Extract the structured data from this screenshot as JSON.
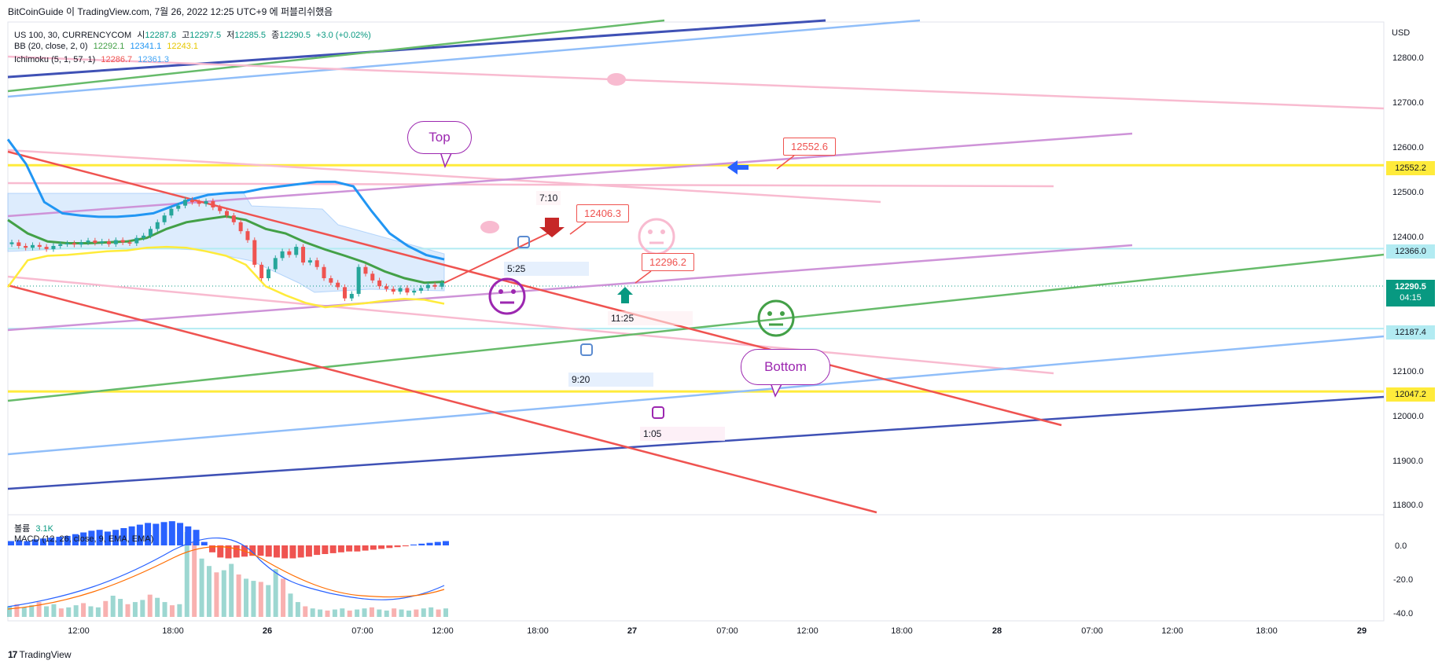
{
  "header": {
    "caption": "BitCoinGuide 이 TradingView.com, 7월 26, 2022 12:25 UTC+9 에 퍼블리쉬했음"
  },
  "legend": {
    "symbol": "US 100, 30, CURRENCYCOM",
    "open_label": "시",
    "open": "12287.8",
    "high_label": "고",
    "high": "12297.5",
    "low_label": "저",
    "low": "12285.5",
    "close_label": "종",
    "close": "12290.5",
    "change": "+3.0 (+0.02%)",
    "bb_label": "BB (20, close, 2, 0)",
    "bb_basis": "12292.1",
    "bb_upper": "12341.1",
    "bb_lower": "12243.1",
    "ichimoku_label": "Ichimoku (5, 1, 57, 1)",
    "ichimoku_a": "12286.7",
    "ichimoku_b": "12361.3",
    "volume_label": "볼륨",
    "volume_value": "3.1K",
    "macd_label": "MACD (12, 26, close, 9, EMA, EMA)"
  },
  "price_axis": {
    "currency": "USD",
    "ticks": [
      "12800.0",
      "12700.0",
      "12600.0",
      "12500.0",
      "12400.0",
      "12100.0",
      "12000.0",
      "11900.0",
      "11800.0"
    ],
    "tags": [
      {
        "value": "12552.2",
        "color": "#ffeb3b",
        "text_color": "#131722"
      },
      {
        "value": "12366.0",
        "color": "#b2ebf2",
        "text_color": "#131722"
      },
      {
        "value": "12290.5",
        "sub": "04:15",
        "color": "#089981",
        "text_color": "#ffffff"
      },
      {
        "value": "12187.4",
        "color": "#b2ebf2",
        "text_color": "#131722"
      },
      {
        "value": "12047.2",
        "color": "#ffeb3b",
        "text_color": "#131722"
      }
    ]
  },
  "macd_axis": {
    "ticks": [
      "0.0",
      "-20.0",
      "-40.0"
    ]
  },
  "time_axis": {
    "labels": [
      "12:00",
      "18:00",
      "26",
      "07:00",
      "12:00",
      "18:00",
      "27",
      "07:00",
      "12:00",
      "18:00",
      "28",
      "07:00",
      "12:00",
      "18:00",
      "29"
    ]
  },
  "annotations": {
    "callout_high": "12552.6",
    "callout_mid": "12406.3",
    "callout_low": "12296.2",
    "bubble_top": "Top",
    "bubble_bottom": "Bottom",
    "time_notes": [
      "7:10",
      "5:25",
      "11:25",
      "9:20",
      "1:05"
    ]
  },
  "footer": {
    "brand": "TradingView"
  },
  "chart_data": {
    "type": "candlestick",
    "ylim": [
      11770,
      12830
    ],
    "horizontal_levels": [
      12552.2,
      12366.0,
      12187.4,
      12047.2
    ],
    "closes": [
      12380,
      12372,
      12368,
      12374,
      12370,
      12365,
      12372,
      12376,
      12378,
      12375,
      12380,
      12384,
      12379,
      12382,
      12376,
      12385,
      12380,
      12378,
      12390,
      12395,
      12410,
      12425,
      12440,
      12455,
      12462,
      12475,
      12470,
      12466,
      12472,
      12458,
      12450,
      12440,
      12425,
      12405,
      12385,
      12330,
      12300,
      12320,
      12345,
      12360,
      12352,
      12370,
      12335,
      12340,
      12325,
      12300,
      12290,
      12280,
      12255,
      12265,
      12325,
      12310,
      12295,
      12282,
      12276,
      12270,
      12278,
      12268,
      12272,
      12278,
      12285,
      12281,
      12290
    ],
    "bb_upper": [
      12610,
      12555,
      12470,
      12445,
      12440,
      12437,
      12437,
      12440,
      12445,
      12460,
      12475,
      12486,
      12490,
      12492,
      12500,
      12505,
      12510,
      12515,
      12515,
      12505,
      12450,
      12400,
      12372,
      12352,
      12342
    ],
    "bb_basis": [
      12430,
      12400,
      12382,
      12378,
      12378,
      12380,
      12382,
      12390,
      12410,
      12425,
      12432,
      12438,
      12430,
      12410,
      12400,
      12380,
      12364,
      12350,
      12335,
      12315,
      12300,
      12290,
      12292
    ],
    "bb_lower": [
      12280,
      12340,
      12350,
      12352,
      12356,
      12360,
      12362,
      12368,
      12370,
      12368,
      12360,
      12350,
      12330,
      12282,
      12262,
      12245,
      12235,
      12240,
      12244,
      12250,
      12254,
      12252,
      12243
    ],
    "volume": [
      10,
      12,
      9,
      11,
      14,
      10,
      12,
      8,
      9,
      11,
      13,
      10,
      9,
      15,
      20,
      17,
      12,
      14,
      16,
      21,
      18,
      14,
      11,
      12,
      80,
      70,
      55,
      48,
      42,
      44,
      50,
      40,
      36,
      34,
      33,
      30,
      45,
      36,
      22,
      14,
      10,
      8,
      7,
      6,
      7,
      8,
      6,
      7,
      8,
      9,
      7,
      6,
      8,
      7,
      6,
      7,
      8,
      9,
      7,
      8
    ],
    "macd_hist": [
      5,
      6,
      5,
      7,
      8,
      9,
      10,
      11,
      13,
      15,
      17,
      18,
      16,
      18,
      20,
      22,
      24,
      26,
      25,
      27,
      28,
      26,
      22,
      18,
      4,
      -8,
      -14,
      -15,
      -14,
      -13,
      -12,
      -12,
      -13,
      -14,
      -15,
      -15,
      -14,
      -13,
      -11,
      -10,
      -9,
      -8,
      -7,
      -7,
      -6,
      -5,
      -4,
      -3,
      -2,
      -1,
      1,
      2,
      3,
      4,
      5
    ]
  }
}
